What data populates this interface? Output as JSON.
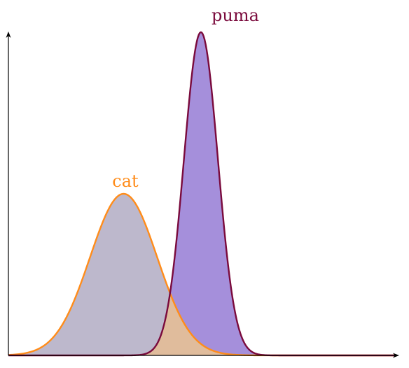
{
  "chart_data": {
    "type": "area",
    "title": "",
    "xlabel": "",
    "ylabel": "",
    "grid": false,
    "axis_color": "#000000",
    "xlim": [
      0,
      100
    ],
    "ylim": [
      0,
      1
    ],
    "series": [
      {
        "name": "cat",
        "distribution": "normal",
        "mean": 29.8,
        "sd": 8.7,
        "peak": 0.5,
        "line_color": "#ff8c1a",
        "fill_color": "#bdb8cc",
        "overlap_fill_color": "#e0bc9c"
      },
      {
        "name": "puma",
        "distribution": "normal",
        "mean": 49.8,
        "sd": 4.4,
        "peak": 1.0,
        "line_color": "#7a0a3c",
        "fill_color": "#a58fdb"
      }
    ]
  }
}
